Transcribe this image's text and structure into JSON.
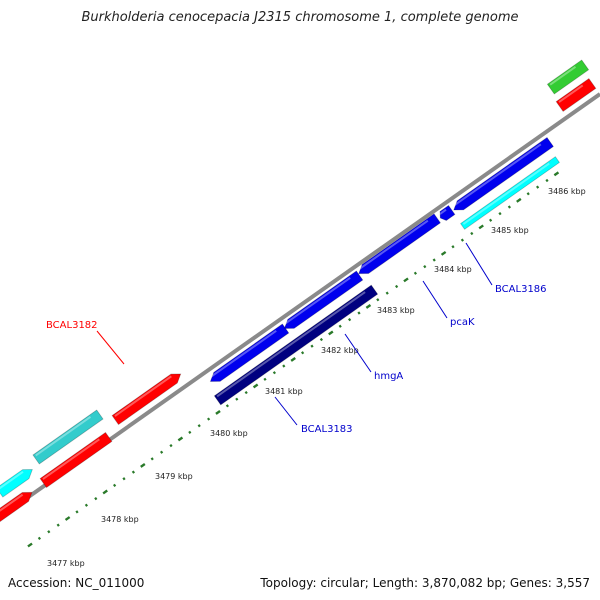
{
  "title": "Burkholderia cenocepacia J2315 chromosome 1, complete genome",
  "footer": {
    "accession": "Accession: NC_011000",
    "stats": "Topology: circular; Length: 3,870,082 bp; Genes: 3,557"
  },
  "colors": {
    "backbone": "#8a8a8a",
    "tick": "#2a7a2a",
    "gene_red": "#ff0000",
    "gene_teal": "#33cccc",
    "gene_cyan": "#00ffff",
    "gene_blue": "#0000ee",
    "gene_navy": "#000080",
    "gene_green": "#33cc33",
    "label_red": "#ff0000",
    "label_blue": "#0000cc"
  },
  "scale_labels": [
    "3477 kbp",
    "3478 kbp",
    "3479 kbp",
    "3480 kbp",
    "3481 kbp",
    "3482 kbp",
    "3483 kbp",
    "3484 kbp",
    "3485 kbp",
    "3486 kbp"
  ],
  "gene_labels": [
    {
      "name": "BCAL3182",
      "color": "label_red"
    },
    {
      "name": "hmgA",
      "color": "label_blue"
    },
    {
      "name": "BCAL3183",
      "color": "label_blue"
    },
    {
      "name": "pcaK",
      "color": "label_blue"
    },
    {
      "name": "BCAL3186",
      "color": "label_blue"
    }
  ]
}
